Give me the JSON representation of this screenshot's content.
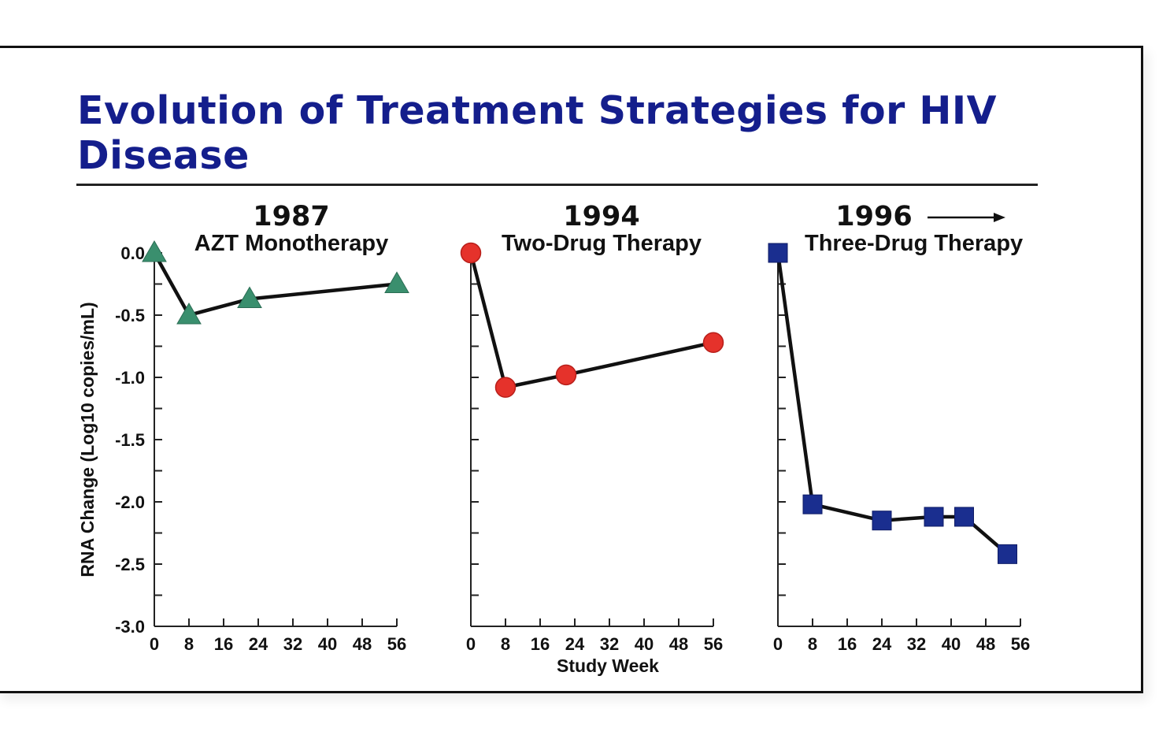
{
  "slide": {
    "title": "Evolution of Treatment Strategies for HIV Disease"
  },
  "chart_data": [
    {
      "type": "line",
      "year": "1987",
      "title": "AZT Monotherapy",
      "marker": "triangle",
      "color": "#3a8f6e",
      "xlabel": "",
      "ylabel": "RNA Change (Log10 copies/mL)",
      "xlim": [
        0,
        56
      ],
      "ylim": [
        -3.0,
        0.0
      ],
      "xticks": [
        "0",
        "8",
        "16",
        "24",
        "32",
        "40",
        "48",
        "56"
      ],
      "yticks": [
        "0.0",
        "-0.5",
        "-1.0",
        "-1.5",
        "-2.0",
        "-2.5",
        "-3.0"
      ],
      "series": [
        {
          "x": [
            0,
            8,
            22,
            56
          ],
          "y": [
            0.0,
            -0.5,
            -0.37,
            -0.25
          ]
        }
      ]
    },
    {
      "type": "line",
      "year": "1994",
      "title": "Two-Drug Therapy",
      "marker": "circle",
      "color": "#e5322b",
      "xlabel": "Study Week",
      "ylabel": "",
      "xlim": [
        0,
        56
      ],
      "ylim": [
        -3.0,
        0.0
      ],
      "xticks": [
        "0",
        "8",
        "16",
        "24",
        "32",
        "40",
        "48",
        "56"
      ],
      "series": [
        {
          "x": [
            0,
            8,
            22,
            56
          ],
          "y": [
            0.0,
            -1.08,
            -0.98,
            -0.72
          ]
        }
      ]
    },
    {
      "type": "line",
      "year": "1996",
      "title": "Three-Drug Therapy",
      "marker": "square",
      "color": "#1a2e8f",
      "year_arrow": true,
      "xlabel": "",
      "ylabel": "",
      "xlim": [
        0,
        56
      ],
      "ylim": [
        -3.0,
        0.0
      ],
      "xticks": [
        "0",
        "8",
        "16",
        "24",
        "32",
        "40",
        "48",
        "56"
      ],
      "series": [
        {
          "x": [
            0,
            8,
            24,
            36,
            43,
            53
          ],
          "y": [
            0.0,
            -2.02,
            -2.15,
            -2.12,
            -2.12,
            -2.42
          ]
        }
      ]
    }
  ]
}
